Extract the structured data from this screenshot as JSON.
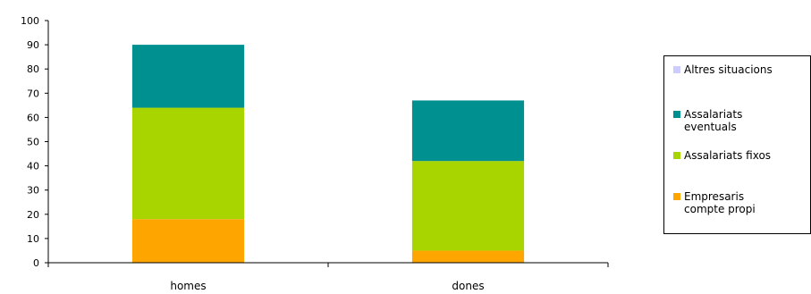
{
  "chart_data": {
    "type": "bar",
    "stacked": true,
    "categories": [
      "homes",
      "dones"
    ],
    "series": [
      {
        "name": "Empresaris\ncompte propi",
        "color": "#ffa500",
        "values": [
          18,
          5
        ]
      },
      {
        "name": "Assalariats fixos",
        "color": "#a8d400",
        "values": [
          46,
          37
        ]
      },
      {
        "name": "Assalariats\neventuals",
        "color": "#009090",
        "values": [
          26,
          25
        ]
      },
      {
        "name": "Altres situacions",
        "color": "#ccccff",
        "values": [
          0,
          0
        ]
      }
    ],
    "yticks": [
      "0",
      "10",
      "20",
      "30",
      "40",
      "50",
      "60",
      "70",
      "80",
      "90",
      "100"
    ],
    "ylim": [
      0,
      100
    ],
    "grid": false,
    "legend_position": "right",
    "legend_order": [
      3,
      2,
      1,
      0
    ]
  }
}
